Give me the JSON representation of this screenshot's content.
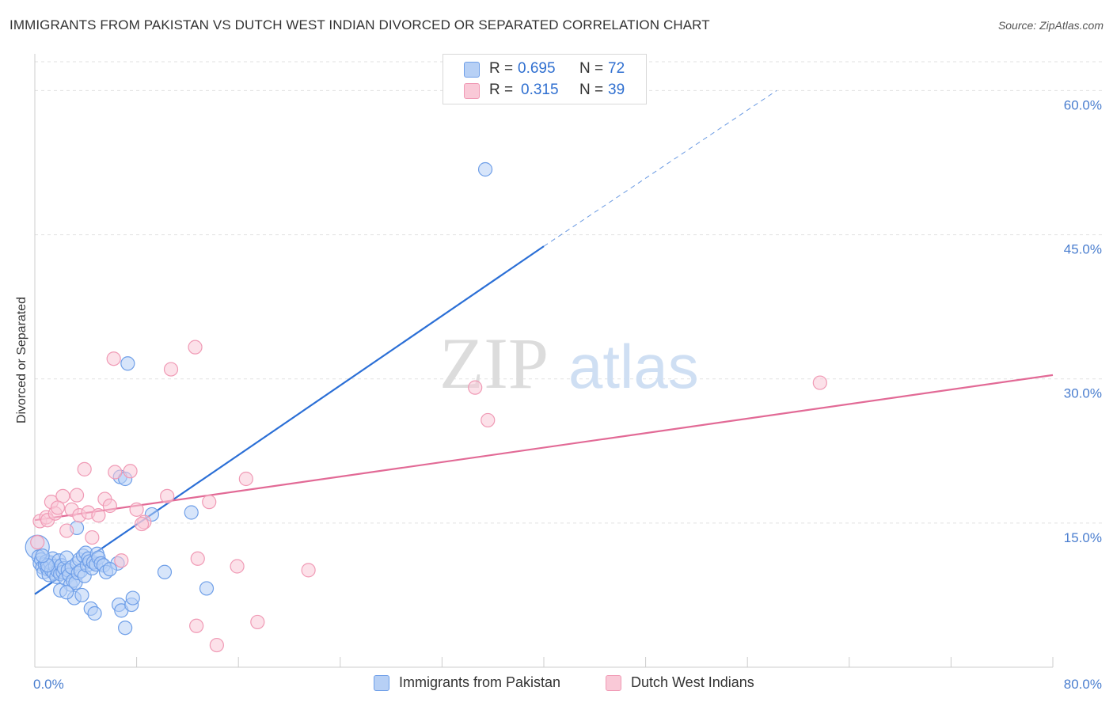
{
  "title": "IMMIGRANTS FROM PAKISTAN VS DUTCH WEST INDIAN DIVORCED OR SEPARATED CORRELATION CHART",
  "source": "Source: ZipAtlas.com",
  "watermark": {
    "zip": "ZIP",
    "atlas": "atlas"
  },
  "legend_top": {
    "rows": [
      {
        "r_label": "R =",
        "r_value": "0.695",
        "n_label": "N =",
        "n_value": "72"
      },
      {
        "r_label": "R =",
        "r_value": "0.315",
        "n_label": "N =",
        "n_value": "39"
      }
    ]
  },
  "chart_data": {
    "type": "scatter",
    "ylabel": "Divorced or Separated",
    "xlabel": "",
    "xlim": [
      0,
      80
    ],
    "ylim": [
      0,
      63
    ],
    "x_tick_labels": [
      {
        "value": 0,
        "label": "0.0%"
      },
      {
        "value": 80,
        "label": "80.0%"
      }
    ],
    "y_tick_labels": [
      {
        "value": 15,
        "label": "15.0%"
      },
      {
        "value": 30,
        "label": "30.0%"
      },
      {
        "value": 45,
        "label": "45.0%"
      },
      {
        "value": 60,
        "label": "60.0%"
      }
    ],
    "series": [
      {
        "name": "Immigrants from Pakistan",
        "color": "#6f9fe8",
        "fill": "#b7d0f5",
        "trend": {
          "x0": 0,
          "y0": 7.6,
          "x1": 40,
          "y1": 43.8,
          "dash_to_x": 58.3,
          "dash_to_y": 60.0,
          "color": "#2b6fd6"
        },
        "points": [
          [
            0.2,
            12.5
          ],
          [
            0.3,
            11.5
          ],
          [
            0.4,
            10.8
          ],
          [
            0.5,
            11.2
          ],
          [
            0.6,
            10.4
          ],
          [
            0.7,
            9.9
          ],
          [
            0.8,
            10.7
          ],
          [
            0.9,
            11.0
          ],
          [
            1.0,
            10.2
          ],
          [
            1.1,
            9.6
          ],
          [
            1.2,
            10.9
          ],
          [
            1.3,
            10.1
          ],
          [
            1.4,
            11.3
          ],
          [
            1.5,
            9.8
          ],
          [
            1.6,
            10.5
          ],
          [
            1.7,
            9.4
          ],
          [
            1.8,
            10.0
          ],
          [
            1.9,
            11.1
          ],
          [
            2.0,
            9.7
          ],
          [
            2.1,
            10.6
          ],
          [
            2.2,
            9.9
          ],
          [
            2.3,
            10.3
          ],
          [
            2.4,
            9.2
          ],
          [
            2.5,
            11.4
          ],
          [
            2.6,
            10.1
          ],
          [
            2.7,
            9.6
          ],
          [
            2.8,
            8.6
          ],
          [
            2.9,
            10.4
          ],
          [
            3.0,
            9.0
          ],
          [
            3.1,
            7.2
          ],
          [
            3.2,
            8.8
          ],
          [
            3.3,
            10.8
          ],
          [
            3.4,
            9.8
          ],
          [
            3.5,
            11.2
          ],
          [
            3.6,
            10.0
          ],
          [
            3.7,
            7.5
          ],
          [
            3.8,
            11.6
          ],
          [
            3.9,
            9.5
          ],
          [
            4.0,
            11.9
          ],
          [
            4.1,
            10.6
          ],
          [
            4.2,
            11.3
          ],
          [
            4.3,
            11.0
          ],
          [
            4.4,
            6.1
          ],
          [
            4.5,
            10.3
          ],
          [
            4.6,
            10.9
          ],
          [
            4.7,
            5.6
          ],
          [
            4.8,
            10.7
          ],
          [
            4.9,
            11.8
          ],
          [
            5.0,
            11.4
          ],
          [
            5.2,
            10.8
          ],
          [
            5.4,
            10.6
          ],
          [
            5.6,
            9.9
          ],
          [
            6.5,
            10.8
          ],
          [
            6.6,
            6.5
          ],
          [
            6.7,
            19.8
          ],
          [
            6.8,
            5.9
          ],
          [
            7.1,
            19.6
          ],
          [
            7.1,
            4.1
          ],
          [
            7.3,
            31.6
          ],
          [
            7.6,
            6.5
          ],
          [
            7.7,
            7.2
          ],
          [
            9.2,
            15.9
          ],
          [
            10.2,
            9.9
          ],
          [
            12.3,
            16.1
          ],
          [
            13.5,
            8.2
          ],
          [
            35.4,
            51.8
          ],
          [
            2.0,
            8.0
          ],
          [
            2.5,
            7.8
          ],
          [
            3.3,
            14.5
          ],
          [
            1.0,
            10.6
          ],
          [
            0.6,
            11.6
          ],
          [
            5.9,
            10.2
          ]
        ]
      },
      {
        "name": "Dutch West Indians",
        "color": "#f09ab5",
        "fill": "#f9c9d7",
        "trend": {
          "x0": 0,
          "y0": 15.3,
          "x1": 80,
          "y1": 30.4,
          "color": "#e26a96"
        },
        "points": [
          [
            0.4,
            15.2
          ],
          [
            0.9,
            15.6
          ],
          [
            1.0,
            15.3
          ],
          [
            1.3,
            17.2
          ],
          [
            1.6,
            16.0
          ],
          [
            2.2,
            17.8
          ],
          [
            2.5,
            14.2
          ],
          [
            2.9,
            16.4
          ],
          [
            3.3,
            17.9
          ],
          [
            3.5,
            15.8
          ],
          [
            3.9,
            20.6
          ],
          [
            4.2,
            16.1
          ],
          [
            4.5,
            13.5
          ],
          [
            5.0,
            15.8
          ],
          [
            5.5,
            17.5
          ],
          [
            5.9,
            16.8
          ],
          [
            6.2,
            32.1
          ],
          [
            6.3,
            20.3
          ],
          [
            6.8,
            11.1
          ],
          [
            7.5,
            20.4
          ],
          [
            8.0,
            16.4
          ],
          [
            8.6,
            15.1
          ],
          [
            10.4,
            17.8
          ],
          [
            10.7,
            31.0
          ],
          [
            12.7,
            4.3
          ],
          [
            12.8,
            11.3
          ],
          [
            12.6,
            33.3
          ],
          [
            13.7,
            17.2
          ],
          [
            14.3,
            2.3
          ],
          [
            15.9,
            10.5
          ],
          [
            16.6,
            19.6
          ],
          [
            17.5,
            4.7
          ],
          [
            21.5,
            10.1
          ],
          [
            34.6,
            29.1
          ],
          [
            35.6,
            25.7
          ],
          [
            61.7,
            29.6
          ],
          [
            0.2,
            13.0
          ],
          [
            1.8,
            16.6
          ],
          [
            8.4,
            14.9
          ]
        ]
      }
    ]
  }
}
